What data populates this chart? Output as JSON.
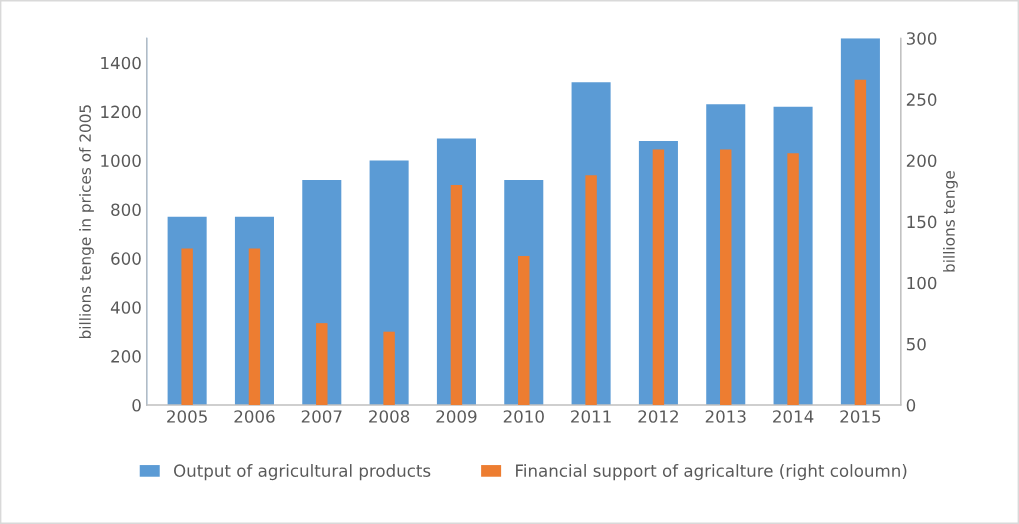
{
  "chart_data": {
    "type": "bar",
    "ylabel": "billions tenge in prices of 2005",
    "y2label": "billions tenge",
    "categories": [
      "2005",
      "2006",
      "2007",
      "2008",
      "2009",
      "2010",
      "2011",
      "2012",
      "2013",
      "2014",
      "2015"
    ],
    "series": [
      {
        "name": "Output of agricultural products",
        "color": "#5b9bd5",
        "values": [
          770,
          770,
          920,
          1000,
          1090,
          920,
          1320,
          1080,
          1230,
          1220,
          1500
        ]
      },
      {
        "name": "Financial support of agricalture (right coloumn)",
        "color": "#ed7d31",
        "axis": "y2",
        "values": [
          128,
          128,
          67,
          60,
          180,
          122,
          188,
          209,
          209,
          206,
          266
        ]
      }
    ],
    "ylim": [
      0,
      1500
    ],
    "yticks": [
      0,
      200,
      400,
      600,
      800,
      1000,
      1200,
      1400
    ],
    "y2lim": [
      0,
      300
    ],
    "y2ticks": [
      0,
      50,
      100,
      150,
      200,
      250,
      300
    ],
    "grid": false,
    "legend": "bottom"
  }
}
